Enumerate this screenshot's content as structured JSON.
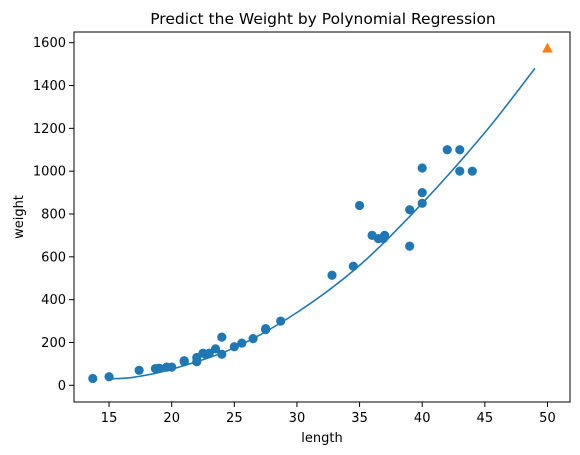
{
  "chart_data": {
    "type": "scatter",
    "title": "Predict the Weight by Polynomial Regression",
    "xlabel": "length",
    "ylabel": "weight",
    "xlim": [
      12.2,
      51.8
    ],
    "ylim": [
      -78,
      1650
    ],
    "xticks": [
      15,
      20,
      25,
      30,
      35,
      40,
      45,
      50
    ],
    "yticks": [
      0,
      200,
      400,
      600,
      800,
      1000,
      1200,
      1400,
      1600
    ],
    "grid": false,
    "series": [
      {
        "kind": "scatter",
        "marker": "circle",
        "color": "#1f77b4",
        "points": [
          [
            13.7,
            32
          ],
          [
            15.0,
            40
          ],
          [
            17.4,
            70
          ],
          [
            18.7,
            78
          ],
          [
            19.0,
            80
          ],
          [
            19.6,
            85
          ],
          [
            20.0,
            85
          ],
          [
            21.0,
            110
          ],
          [
            21.0,
            115
          ],
          [
            22.0,
            110
          ],
          [
            22.0,
            130
          ],
          [
            22.5,
            150
          ],
          [
            22.7,
            145
          ],
          [
            23.0,
            150
          ],
          [
            23.5,
            170
          ],
          [
            24.0,
            145
          ],
          [
            24.0,
            225
          ],
          [
            25.0,
            180
          ],
          [
            25.6,
            197
          ],
          [
            26.5,
            218
          ],
          [
            27.5,
            260
          ],
          [
            27.5,
            265
          ],
          [
            28.7,
            300
          ],
          [
            32.8,
            514
          ],
          [
            34.5,
            556
          ],
          [
            35.0,
            840
          ],
          [
            36.0,
            700
          ],
          [
            36.5,
            685
          ],
          [
            36.9,
            685
          ],
          [
            37.0,
            700
          ],
          [
            39.0,
            650
          ],
          [
            39.0,
            820
          ],
          [
            40.0,
            850
          ],
          [
            40.0,
            900
          ],
          [
            40.0,
            1015
          ],
          [
            42.0,
            1100
          ],
          [
            43.0,
            1000
          ],
          [
            43.0,
            1100
          ],
          [
            44.0,
            1000
          ]
        ]
      },
      {
        "kind": "line",
        "color": "#1f77b4",
        "curve_points": [
          [
            15,
            30
          ],
          [
            17,
            38
          ],
          [
            20,
            75
          ],
          [
            25,
            175
          ],
          [
            30,
            340
          ],
          [
            35,
            560
          ],
          [
            40,
            850
          ],
          [
            45,
            1180
          ],
          [
            49,
            1480
          ]
        ]
      },
      {
        "kind": "scatter",
        "marker": "triangle",
        "color": "#ff7f0e",
        "points": [
          [
            50,
            1574
          ]
        ]
      }
    ]
  }
}
